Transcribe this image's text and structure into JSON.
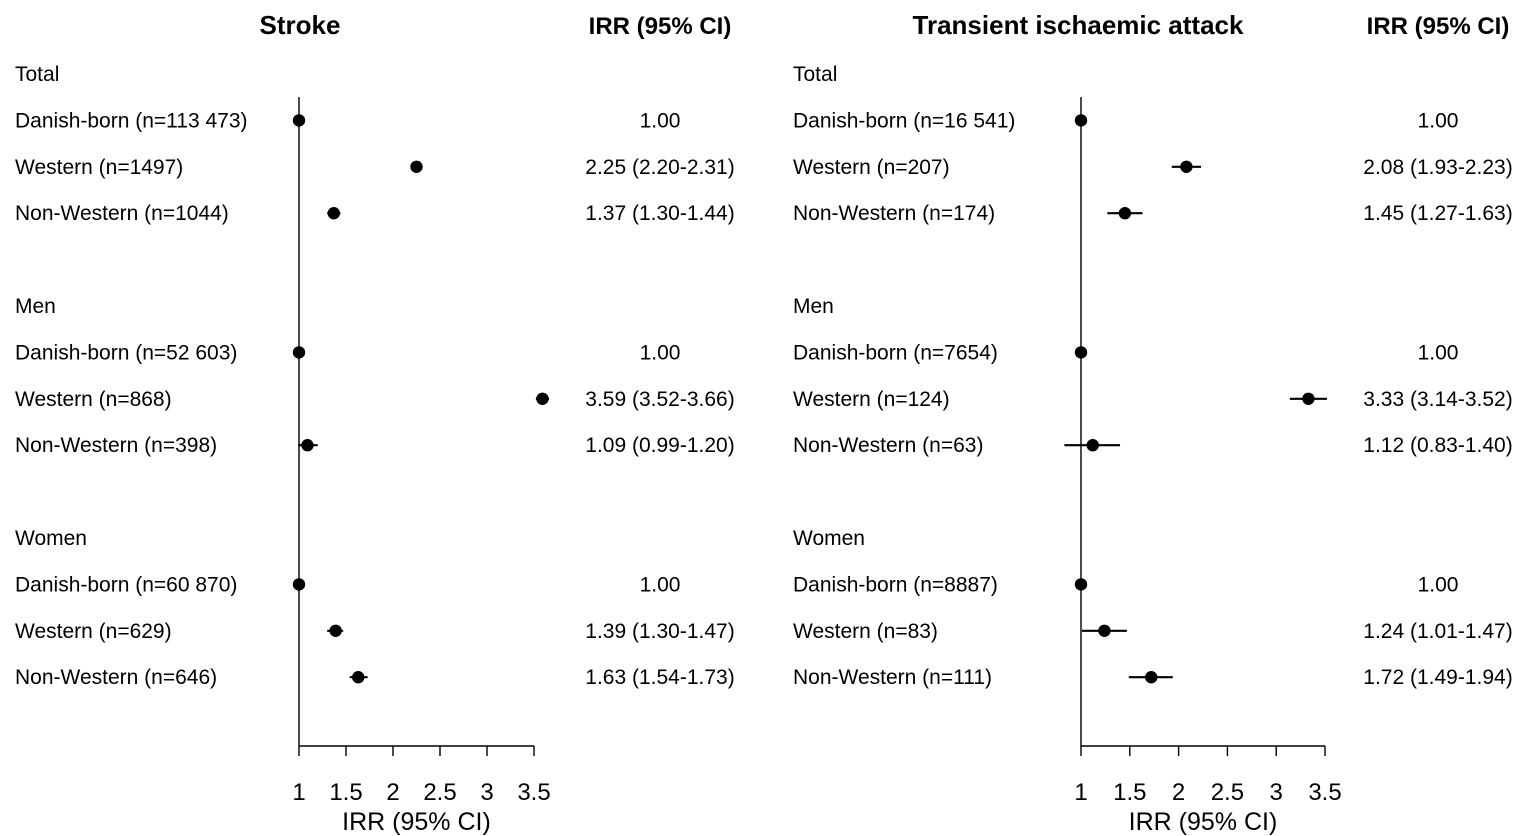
{
  "chart_data": [
    {
      "type": "forest",
      "title": "Stroke",
      "ci_column_header": "IRR (95% CI)",
      "xlabel": "IRR (95% CI)",
      "xlim": [
        1,
        3.5
      ],
      "xticks": [
        "1",
        "1.5",
        "2",
        "2.5",
        "3",
        "3.5"
      ],
      "reference_line": 1,
      "groups": [
        {
          "label": "Total",
          "rows": [
            {
              "label": "Danish-born (n=113 473)",
              "estimate": 1.0,
              "lower": 1.0,
              "upper": 1.0,
              "text": "1.00"
            },
            {
              "label": "Western (n=1497)",
              "estimate": 2.25,
              "lower": 2.2,
              "upper": 2.31,
              "text": "2.25 (2.20-2.31)"
            },
            {
              "label": "Non-Western (n=1044)",
              "estimate": 1.37,
              "lower": 1.3,
              "upper": 1.44,
              "text": "1.37 (1.30-1.44)"
            }
          ]
        },
        {
          "label": "Men",
          "rows": [
            {
              "label": "Danish-born (n=52 603)",
              "estimate": 1.0,
              "lower": 1.0,
              "upper": 1.0,
              "text": "1.00"
            },
            {
              "label": "Western (n=868)",
              "estimate": 3.59,
              "lower": 3.52,
              "upper": 3.66,
              "text": "3.59 (3.52-3.66)"
            },
            {
              "label": "Non-Western (n=398)",
              "estimate": 1.09,
              "lower": 0.99,
              "upper": 1.2,
              "text": "1.09 (0.99-1.20)"
            }
          ]
        },
        {
          "label": "Women",
          "rows": [
            {
              "label": "Danish-born (n=60 870)",
              "estimate": 1.0,
              "lower": 1.0,
              "upper": 1.0,
              "text": "1.00"
            },
            {
              "label": "Western (n=629)",
              "estimate": 1.39,
              "lower": 1.3,
              "upper": 1.47,
              "text": "1.39 (1.30-1.47)"
            },
            {
              "label": "Non-Western (n=646)",
              "estimate": 1.63,
              "lower": 1.54,
              "upper": 1.73,
              "text": "1.63 (1.54-1.73)"
            }
          ]
        }
      ]
    },
    {
      "type": "forest",
      "title": "Transient ischaemic attack",
      "ci_column_header": "IRR (95% CI)",
      "xlabel": "IRR (95% CI)",
      "xlim": [
        1,
        3.5
      ],
      "xticks": [
        "1",
        "1.5",
        "2",
        "2.5",
        "3",
        "3.5"
      ],
      "reference_line": 1,
      "groups": [
        {
          "label": "Total",
          "rows": [
            {
              "label": "Danish-born (n=16 541)",
              "estimate": 1.0,
              "lower": 1.0,
              "upper": 1.0,
              "text": "1.00"
            },
            {
              "label": "Western (n=207)",
              "estimate": 2.08,
              "lower": 1.93,
              "upper": 2.23,
              "text": "2.08 (1.93-2.23)"
            },
            {
              "label": "Non-Western (n=174)",
              "estimate": 1.45,
              "lower": 1.27,
              "upper": 1.63,
              "text": "1.45 (1.27-1.63)"
            }
          ]
        },
        {
          "label": "Men",
          "rows": [
            {
              "label": "Danish-born (n=7654)",
              "estimate": 1.0,
              "lower": 1.0,
              "upper": 1.0,
              "text": "1.00"
            },
            {
              "label": "Western (n=124)",
              "estimate": 3.33,
              "lower": 3.14,
              "upper": 3.52,
              "text": "3.33 (3.14-3.52)"
            },
            {
              "label": "Non-Western (n=63)",
              "estimate": 1.12,
              "lower": 0.83,
              "upper": 1.4,
              "text": "1.12 (0.83-1.40)"
            }
          ]
        },
        {
          "label": "Women",
          "rows": [
            {
              "label": "Danish-born (n=8887)",
              "estimate": 1.0,
              "lower": 1.0,
              "upper": 1.0,
              "text": "1.00"
            },
            {
              "label": "Western (n=83)",
              "estimate": 1.24,
              "lower": 1.01,
              "upper": 1.47,
              "text": "1.24 (1.01-1.47)"
            },
            {
              "label": "Non-Western (n=111)",
              "estimate": 1.72,
              "lower": 1.49,
              "upper": 1.94,
              "text": "1.72 (1.49-1.94)"
            }
          ]
        }
      ]
    }
  ]
}
